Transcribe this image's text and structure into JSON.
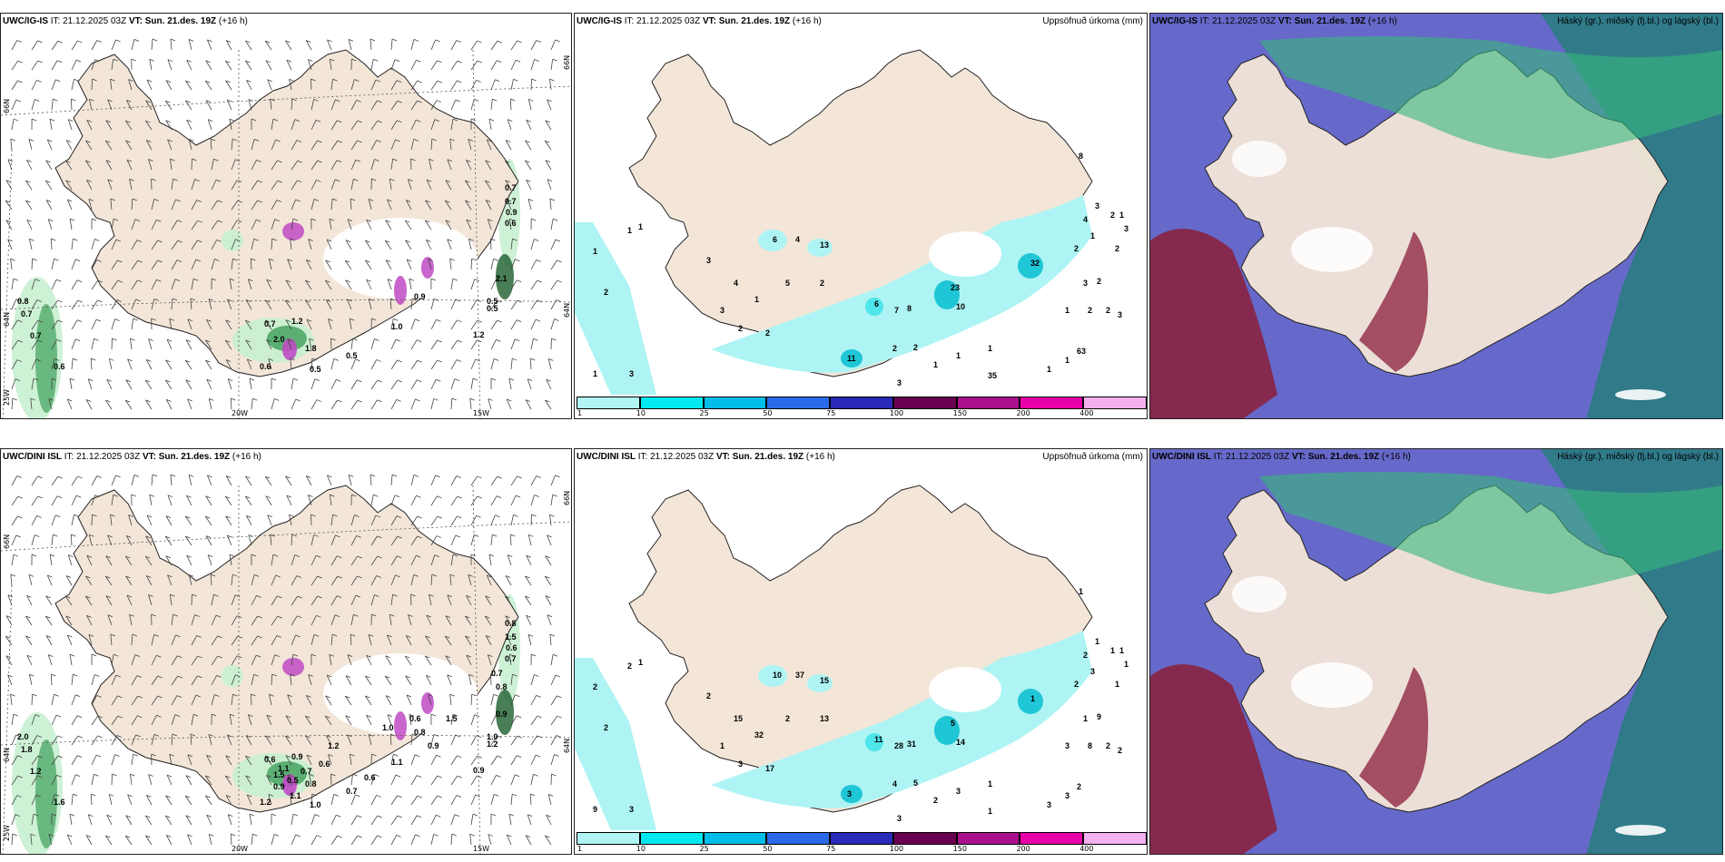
{
  "colors": {
    "land": "#f3e6d8",
    "coast": "#222222",
    "precip_light": "#c8f0d0",
    "precip_green": "#3f9f5a",
    "precip_dark": "#1c5e2c",
    "snow_magenta": "#c04ac4",
    "accum_cyan": "#aef4f4",
    "cloud_high": "#2a7c82",
    "cloud_mid": "#4b4fc0",
    "cloud_low": "#8b1e3a",
    "cloud_green": "#37b87c"
  },
  "rows": [
    {
      "model": "UWC/IG-IS",
      "p1": {
        "model": "UWC/IG-IS",
        "it": "IT: 21.12.2025 03Z",
        "vt_label": "VT:",
        "vt": "Sun. 21.des. 19Z",
        "lead": "(+16 h)",
        "axis": {
          "lat66_left": "66N",
          "lat66_right": "66N",
          "lat64_left": "64N",
          "lat64_right": "64N",
          "lon20": "20W",
          "lon15": "15W",
          "lon25": "25W"
        },
        "values": [
          "0.7",
          "0.7",
          "0.9",
          "0.6",
          "2.1",
          "0.5",
          "0.5",
          "0.8",
          "0.7",
          "0.7",
          "0.6",
          "0.7",
          "1.2",
          "2.0",
          "1.8",
          "0.5",
          "0.6",
          "0.5",
          "1.0",
          "0.9",
          "1.2"
        ]
      },
      "p2": {
        "model": "UWC/IG-IS",
        "it": "IT: 21.12.2025 03Z",
        "vt_label": "VT:",
        "vt": "Sun. 21.des. 19Z",
        "lead": "(+16 h)",
        "title": "Uppsöfnuð úrkoma (mm)",
        "values": [
          "1",
          "1",
          "1",
          "2",
          "3",
          "1",
          "2",
          "4",
          "3",
          "6",
          "13",
          "2",
          "4",
          "5",
          "3",
          "1",
          "2",
          "6",
          "7",
          "8",
          "10",
          "23",
          "32",
          "35",
          "2",
          "3",
          "1",
          "2",
          "1",
          "2",
          "3",
          "63",
          "11",
          "2",
          "2",
          "1",
          "3",
          "1",
          "1",
          "1",
          "2",
          "2",
          "1",
          "2",
          "3",
          "4",
          "3",
          "1",
          "8"
        ],
        "colorbar": [
          "1",
          "10",
          "25",
          "50",
          "75",
          "100",
          "150",
          "200",
          "400"
        ]
      },
      "p3": {
        "model": "UWC/IG-IS",
        "it": "IT: 21.12.2025 03Z",
        "vt_label": "VT:",
        "vt": "Sun. 21.des. 19Z",
        "lead": "(+16 h)",
        "title": "Háský (gr.), miðský (fj.bl.) og lágský (bl.)"
      }
    },
    {
      "model": "UWC/DINI ISL",
      "p1": {
        "model": "UWC/DINI ISL",
        "it": "IT: 21.12.2025 03Z",
        "vt_label": "VT:",
        "vt": "Sun. 21.des. 19Z",
        "lead": "(+16 h)",
        "axis": {
          "lat66_left": "66N",
          "lat66_right": "66N",
          "lat64_left": "64N",
          "lat64_right": "64N",
          "lon20": "20W",
          "lon15": "15W",
          "lon25": "25W"
        },
        "values": [
          "0.8",
          "1.5",
          "0.6",
          "0.7",
          "0.9",
          "1.0",
          "1.2",
          "2.0",
          "1.8",
          "1.2",
          "1.6",
          "0.6",
          "0.9",
          "1.5",
          "0.8",
          "0.7",
          "1.2",
          "1.0",
          "1.1",
          "0.8",
          "0.9",
          "1.1",
          "0.5",
          "0.7",
          "0.6",
          "0.9",
          "1.1",
          "1.2",
          "1.0",
          "0.9",
          "1.5",
          "0.6",
          "0.6",
          "0.7",
          "0.8"
        ]
      },
      "p2": {
        "model": "UWC/DINI ISL",
        "it": "IT: 21.12.2025 03Z",
        "vt_label": "VT:",
        "vt": "Sun. 21.des. 19Z",
        "lead": "(+16 h)",
        "title": "Uppsöfnuð úrkoma (mm)",
        "values": [
          "2",
          "1",
          "2",
          "2",
          "3",
          "9",
          "3",
          "15",
          "2",
          "10",
          "15",
          "13",
          "37",
          "2",
          "1",
          "32",
          "17",
          "11",
          "28",
          "31",
          "14",
          "5",
          "1",
          "1",
          "2",
          "1",
          "3",
          "1",
          "3",
          "2",
          "1",
          "2",
          "3",
          "4",
          "5",
          "3",
          "3",
          "2",
          "1",
          "3",
          "8",
          "9",
          "3",
          "1",
          "1",
          "2",
          "2",
          "1",
          "1"
        ],
        "colorbar": [
          "1",
          "10",
          "25",
          "50",
          "75",
          "100",
          "150",
          "200",
          "400"
        ]
      },
      "p3": {
        "model": "UWC/DINI ISL",
        "it": "IT: 21.12.2025 03Z",
        "vt_label": "VT:",
        "vt": "Sun. 21.des. 19Z",
        "lead": "(+16 h)",
        "title": "Háský (gr.), miðský (fj.bl.) og lágský (bl.)"
      }
    }
  ]
}
